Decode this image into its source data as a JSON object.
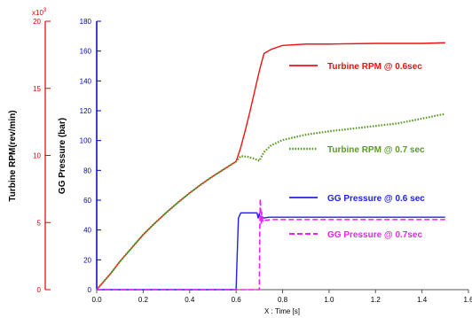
{
  "chart_data": {
    "type": "line",
    "xlabel": "X : Time [s]",
    "xlim": [
      0.0,
      1.6
    ],
    "x_ticks": [
      0.0,
      0.2,
      0.4,
      0.6,
      0.8,
      1.0,
      1.2,
      1.4,
      1.6
    ],
    "x_tick_labels": [
      "0.0",
      "0.2",
      "0.4",
      "0.6",
      "0.8",
      "1.0",
      "1.2",
      "1.4",
      "1.6"
    ],
    "axes": {
      "rpm": {
        "label": "Turbine RPM(rev/min)",
        "multiplier": "x10",
        "exponent": "3",
        "ylim": [
          0,
          20
        ],
        "ticks": [
          0,
          5,
          10,
          15,
          20
        ],
        "tick_labels": [
          "0",
          "5",
          "10",
          "15",
          "20"
        ],
        "color": "#e00000"
      },
      "pressure": {
        "label": "GG Pressure (bar)",
        "ylim": [
          0,
          180
        ],
        "ticks": [
          0,
          20,
          40,
          60,
          80,
          100,
          120,
          140,
          160,
          180
        ],
        "tick_labels": [
          "0",
          "20",
          "40",
          "60",
          "80",
          "100",
          "120",
          "140",
          "160",
          "180"
        ],
        "color": "#0000cc"
      }
    },
    "series": [
      {
        "name": "Turbine RPM @ 0.6sec",
        "axis": "rpm",
        "color": "#ee1111",
        "style": "solid",
        "x": [
          0.0,
          0.01,
          0.03,
          0.06,
          0.1,
          0.15,
          0.2,
          0.25,
          0.3,
          0.35,
          0.4,
          0.45,
          0.5,
          0.55,
          0.6,
          0.62,
          0.64,
          0.66,
          0.68,
          0.7,
          0.72,
          0.75,
          0.8,
          0.9,
          1.0,
          1.2,
          1.4,
          1.5
        ],
        "y": [
          0.0,
          0.2,
          0.6,
          1.2,
          2.1,
          3.1,
          4.1,
          4.95,
          5.75,
          6.5,
          7.2,
          7.85,
          8.45,
          9.0,
          9.55,
          10.6,
          11.9,
          13.3,
          14.8,
          16.3,
          17.6,
          17.9,
          18.2,
          18.3,
          18.3,
          18.35,
          18.35,
          18.4
        ]
      },
      {
        "name": "Turbine RPM @ 0.7 sec",
        "axis": "rpm",
        "color": "#5a9a28",
        "style": "dotted",
        "x": [
          0.0,
          0.01,
          0.03,
          0.06,
          0.1,
          0.15,
          0.2,
          0.25,
          0.3,
          0.35,
          0.4,
          0.45,
          0.5,
          0.55,
          0.6,
          0.62,
          0.65,
          0.68,
          0.7,
          0.72,
          0.75,
          0.8,
          0.9,
          1.0,
          1.1,
          1.2,
          1.3,
          1.4,
          1.5
        ],
        "y": [
          0.0,
          0.2,
          0.6,
          1.2,
          2.1,
          3.1,
          4.1,
          4.95,
          5.75,
          6.5,
          7.2,
          7.85,
          8.45,
          9.0,
          9.55,
          9.95,
          9.9,
          9.75,
          9.6,
          10.25,
          10.75,
          11.15,
          11.55,
          11.8,
          12.0,
          12.2,
          12.4,
          12.75,
          13.1
        ]
      },
      {
        "name": "GG Pressure @ 0.6 sec",
        "axis": "pressure",
        "color": "#2020ee",
        "style": "solid",
        "x": [
          0.0,
          0.6,
          0.604,
          0.61,
          0.62,
          0.69,
          0.695,
          0.7,
          0.705,
          0.71,
          0.72,
          0.74,
          0.8,
          1.0,
          1.2,
          1.4,
          1.5
        ],
        "y": [
          0.0,
          0.0,
          20.0,
          48.0,
          51.5,
          51.5,
          48.0,
          51.0,
          47.5,
          49.0,
          48.0,
          48.6,
          48.6,
          48.6,
          48.6,
          48.6,
          48.6
        ]
      },
      {
        "name": "GG Pressure @ 0.7sec",
        "axis": "pressure",
        "color": "#ee22ee",
        "style": "dashed",
        "x": [
          0.0,
          0.7,
          0.702,
          0.704,
          0.706,
          0.708,
          0.71,
          0.715,
          0.72,
          0.73,
          0.75,
          0.8,
          1.0,
          1.2,
          1.4,
          1.5
        ],
        "y": [
          0.0,
          0.0,
          40.0,
          61.0,
          55.0,
          44.0,
          52.0,
          45.5,
          46.5,
          46.5,
          47.0,
          47.0,
          47.0,
          47.0,
          47.0,
          47.0
        ]
      }
    ],
    "legend": {
      "placement": "right",
      "style": "inline-labels"
    },
    "grid": false
  }
}
